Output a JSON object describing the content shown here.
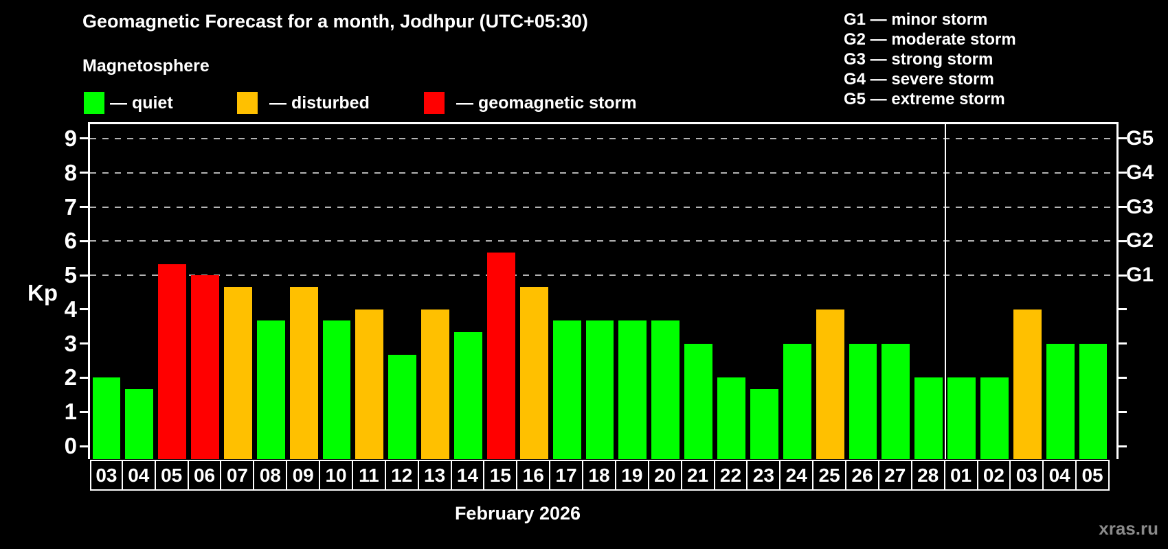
{
  "header": {
    "title": "Geomagnetic Forecast for a month, Jodhpur (UTC+05:30)",
    "subtitle": "Magnetosphere"
  },
  "legend": {
    "items": [
      {
        "key": "quiet",
        "color": "#00ff00",
        "label": "— quiet"
      },
      {
        "key": "disturbed",
        "color": "#ffc000",
        "label": "— disturbed"
      },
      {
        "key": "storm",
        "color": "#ff0000",
        "label": "— geomagnetic storm"
      }
    ]
  },
  "g_legend": {
    "lines": [
      "G1 — minor storm",
      "G2 — moderate storm",
      "G3 — strong storm",
      "G4 — severe storm",
      "G5 — extreme storm"
    ]
  },
  "footer": {
    "xlabel": "February 2026",
    "watermark": "xras.ru"
  },
  "chart_data": {
    "type": "bar",
    "title": "Geomagnetic Forecast for a month, Jodhpur (UTC+05:30)",
    "ylabel": "Kp",
    "xlabel": "February 2026",
    "ylim": [
      0,
      9
    ],
    "yticks": [
      0,
      1,
      2,
      3,
      4,
      5,
      6,
      7,
      8,
      9
    ],
    "grid_kp_levels": [
      5,
      6,
      7,
      8,
      9
    ],
    "right_axis": {
      "labels": [
        "G1",
        "G2",
        "G3",
        "G4",
        "G5"
      ],
      "kp_levels": [
        5,
        6,
        7,
        8,
        9
      ]
    },
    "status_colors": {
      "quiet": "#00ff00",
      "disturbed": "#ffc000",
      "storm": "#ff0000"
    },
    "month_separator_before_category_index": 26,
    "categories": [
      "03",
      "04",
      "05",
      "06",
      "07",
      "08",
      "09",
      "10",
      "11",
      "12",
      "13",
      "14",
      "15",
      "16",
      "17",
      "18",
      "19",
      "20",
      "21",
      "22",
      "23",
      "24",
      "25",
      "26",
      "27",
      "28",
      "01",
      "02",
      "03",
      "04",
      "05"
    ],
    "values": [
      2.0,
      1.67,
      5.33,
      5.0,
      4.67,
      3.67,
      4.67,
      3.67,
      4.0,
      2.67,
      4.0,
      3.33,
      5.67,
      4.67,
      3.67,
      3.67,
      3.67,
      3.67,
      3.0,
      2.0,
      1.67,
      3.0,
      4.0,
      3.0,
      3.0,
      2.0,
      2.0,
      2.0,
      4.0,
      3.0,
      3.0
    ],
    "statuses": [
      "quiet",
      "quiet",
      "storm",
      "storm",
      "disturbed",
      "quiet",
      "disturbed",
      "quiet",
      "disturbed",
      "quiet",
      "disturbed",
      "quiet",
      "storm",
      "disturbed",
      "quiet",
      "quiet",
      "quiet",
      "quiet",
      "quiet",
      "quiet",
      "quiet",
      "quiet",
      "disturbed",
      "quiet",
      "quiet",
      "quiet",
      "quiet",
      "quiet",
      "disturbed",
      "quiet",
      "quiet"
    ]
  }
}
